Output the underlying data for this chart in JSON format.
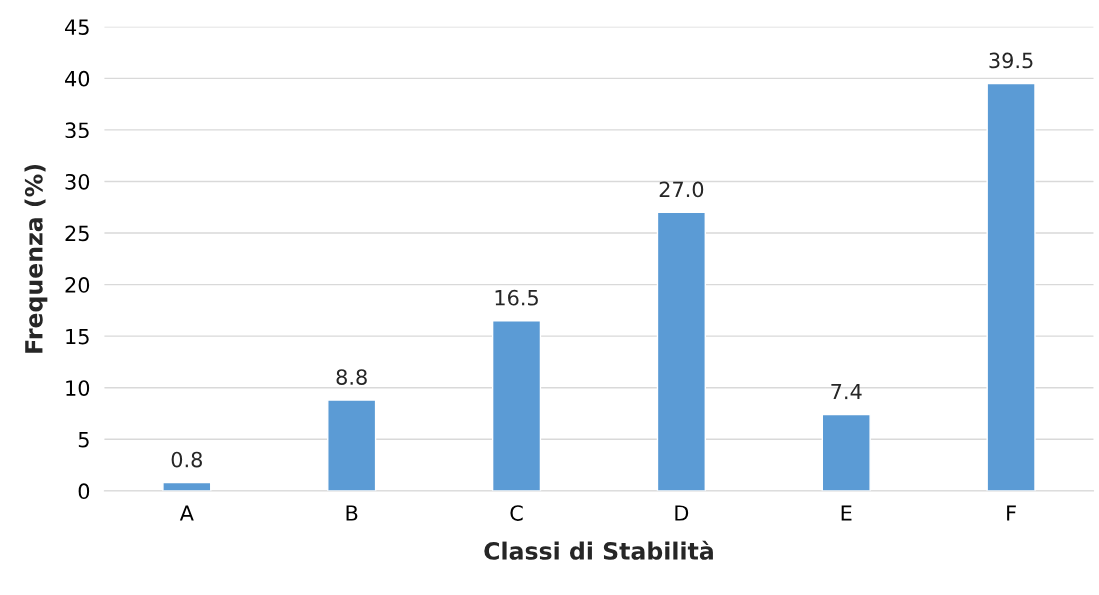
{
  "chart_data": {
    "type": "bar",
    "xlabel": "Classi di Stabilità",
    "ylabel": "Frequenza (%)",
    "categories": [
      "A",
      "B",
      "C",
      "D",
      "E",
      "F"
    ],
    "values": [
      0.8,
      8.8,
      16.5,
      27.0,
      7.4,
      39.5
    ],
    "value_labels": [
      "0.8",
      "8.8",
      "16.5",
      "27.0",
      "7.4",
      "39.5"
    ],
    "color": "#5b9bd5",
    "ylim": [
      0,
      45
    ],
    "yticks": [
      0,
      5,
      10,
      15,
      20,
      25,
      30,
      35,
      40,
      45
    ],
    "grid": "y",
    "legend": false
  }
}
